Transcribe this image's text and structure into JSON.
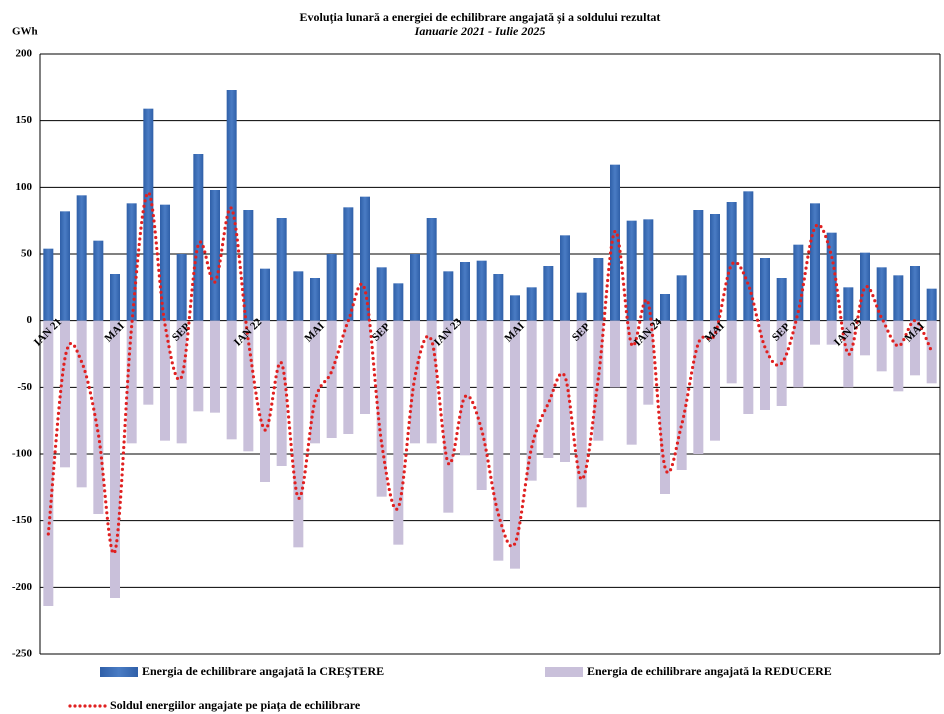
{
  "chart_data": {
    "type": "bar-line",
    "title": "Evoluția lunară a energiei de echilibrare angajată și a soldului rezultat",
    "subtitle": "Ianuarie 2021 - Iulie 2025",
    "y_label": "GWh",
    "categories": [
      "IAN 21",
      null,
      null,
      null,
      "MAI",
      null,
      null,
      null,
      "SEP",
      null,
      null,
      null,
      "IAN 22",
      null,
      null,
      null,
      "MAI",
      null,
      null,
      null,
      "SEP",
      null,
      null,
      null,
      "IAN 23",
      null,
      null,
      null,
      "MAI",
      null,
      null,
      null,
      "SEP",
      null,
      null,
      null,
      "IAN 24",
      null,
      null,
      null,
      "MAI",
      null,
      null,
      null,
      "SEP",
      null,
      null,
      null,
      "IAN 25",
      null,
      null,
      null,
      "MAI",
      null
    ],
    "series": [
      {
        "name": "Energia de echilibrare angajată la CREŞTERE",
        "color": "#4a7cc4",
        "kind": "bar",
        "values": [
          54,
          82,
          94,
          60,
          35,
          88,
          159,
          87,
          50,
          125,
          98,
          173,
          83,
          39,
          77,
          37,
          32,
          50,
          85,
          93,
          40,
          28,
          50,
          77,
          37,
          44,
          45,
          35,
          19,
          25,
          41,
          64,
          21,
          47,
          117,
          75,
          76,
          20,
          34,
          83,
          80,
          89,
          97,
          47,
          32,
          57,
          88,
          66,
          25,
          51,
          40,
          34,
          41,
          24
        ]
      },
      {
        "name": "Energia de echilibrare angajată la REDUCERE",
        "color": "#c9c0da",
        "kind": "bar",
        "values": [
          -214,
          -110,
          -125,
          -145,
          -208,
          -92,
          -63,
          -90,
          -92,
          -68,
          -69,
          -89,
          -98,
          -121,
          -109,
          -170,
          -92,
          -88,
          -85,
          -70,
          -132,
          -168,
          -92,
          -92,
          -144,
          -101,
          -127,
          -180,
          -186,
          -120,
          -103,
          -106,
          -140,
          -90,
          -50,
          -93,
          -63,
          -130,
          -112,
          -100,
          -90,
          -47,
          -70,
          -67,
          -64,
          -50,
          -18,
          -18,
          -50,
          -26,
          -38,
          -53,
          -41,
          -47
        ]
      },
      {
        "name": "Soldul energiilor angajate pe piața de echilibrare",
        "color": "#e02020",
        "kind": "line",
        "values": [
          -160,
          -28,
          -31,
          -85,
          -173,
          -4,
          96,
          -3,
          -42,
          57,
          29,
          84,
          -15,
          -82,
          -32,
          -133,
          -60,
          -38,
          0,
          23,
          -92,
          -140,
          -42,
          -15,
          -107,
          -57,
          -82,
          -145,
          -167,
          -95,
          -62,
          -42,
          -119,
          -43,
          67,
          -18,
          13,
          -110,
          -78,
          -17,
          -10,
          42,
          27,
          -20,
          -32,
          7,
          70,
          48,
          -25,
          25,
          2,
          -19,
          0,
          -23
        ]
      }
    ],
    "ylim": [
      -250,
      200
    ],
    "yticks": [
      -250,
      -200,
      -150,
      -100,
      -50,
      0,
      50,
      100,
      150,
      200
    ],
    "grid": true
  }
}
